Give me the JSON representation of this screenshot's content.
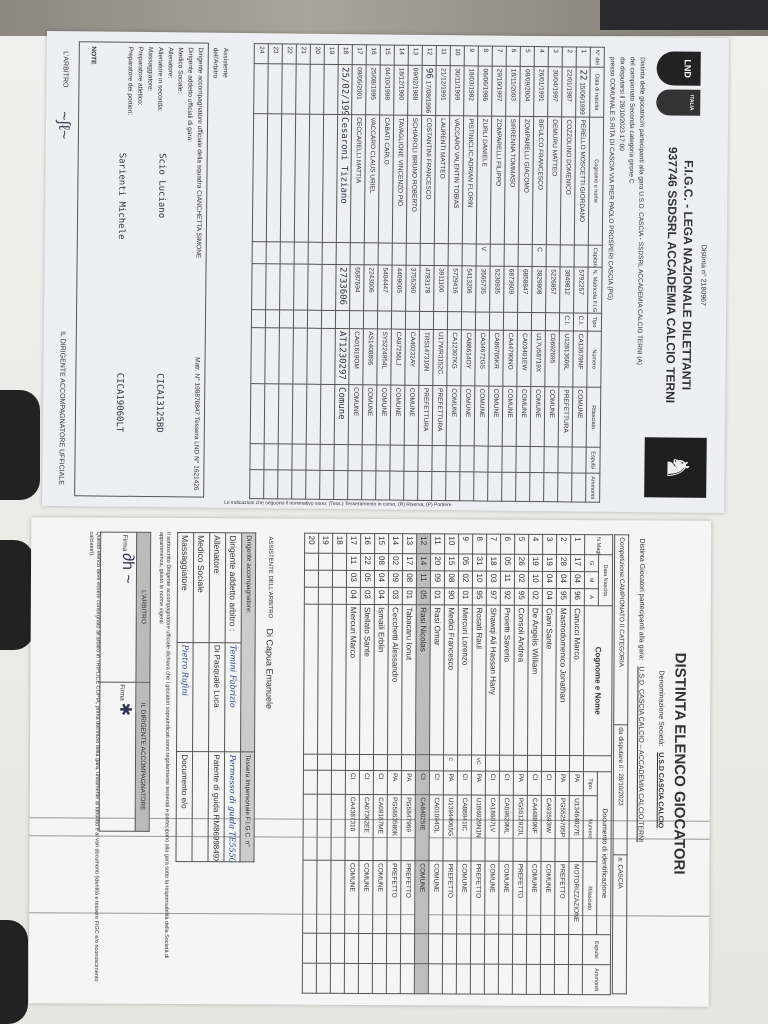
{
  "doc1": {
    "distinta_no": "Distinta n° 2180967",
    "title": "F.I.G.C. - LEGA NAZIONALE DILETTANTI",
    "team": "937746 SSDSRL ACCADEMIA CALCIO TERNI",
    "logo_lnd": "LND",
    "logo_italia": "ITALIA",
    "intro1": "Distinta delle giocatrici/ri partecipanti alla gara   U.S.D. CASCIA - SSDSRL ACCADEMIA CALCIO TERNI (A)",
    "intro2": "del campionato  Seconda categoria girone C",
    "intro3": "da disputarsi il   28/10/2023 17:00",
    "intro4": "presso COMUNALE S.RITA DI CASCIA VIA PIER PAOLO PROSPERI CASCIA (PG)",
    "headers": [
      "N° del Rosa",
      "Data di nascita",
      "Cognome e nome",
      "Capitano V.Cap.",
      "N. Matricola F.I.G.C.",
      "Tipo",
      "Numero",
      "Rilasciato",
      "Espulsi",
      "Ammoniti"
    ],
    "doc_header": "Documento di identificazione",
    "side_note": "Le indicazioni che seguono il nominativo sono: (Tess.) Tesseramento in corso, (R) Riserva, (P) Portiere",
    "rows": [
      {
        "n": "1",
        "mark": "22",
        "date": "15/06/1999",
        "name": "PERELLO MOSCETTI GIORDANO",
        "cap": "",
        "mat": "5792257",
        "tipo": "C.I.",
        "num": "CA13679NF",
        "ril": "COMUNE"
      },
      {
        "n": "2",
        "date": "22/01/1987",
        "name": "COZZOLINO DOMENICO",
        "cap": "",
        "mat": "3849812",
        "tipo": "C.I.",
        "num": "U12813606L",
        "ril": "PREFETTURA"
      },
      {
        "n": "3",
        "date": "30/04/1997",
        "name": "DEMURU MATTEO",
        "cap": "",
        "mat": "5226857",
        "tipo": "",
        "num": "C0692695",
        "ril": "COMUNE"
      },
      {
        "n": "4",
        "date": "26/01/1991",
        "name": "BIFULCO FRANCESCO",
        "cap": "C",
        "mat": "3829808",
        "tipo": "",
        "num": "U17U58719X",
        "ril": "COMUNE"
      },
      {
        "n": "5",
        "date": "08/09/2004",
        "name": "ZOMPARELLI GIACOMO",
        "cap": "",
        "mat": "6858847",
        "tipo": "",
        "num": "CA03401EW",
        "ril": "COMUNE"
      },
      {
        "n": "6",
        "date": "18/11/2003",
        "name": "SIRRENNA TOMMASO",
        "cap": "",
        "mat": "6873609",
        "tipo": "",
        "num": "CA44790NO",
        "ril": "COMUNE"
      },
      {
        "n": "7",
        "date": "29/10/1997",
        "name": "ZOMPARELLI FILIPPO",
        "cap": "",
        "mat": "5230935",
        "tipo": "",
        "num": "CA86705KR",
        "ril": "COMUNE"
      },
      {
        "n": "8",
        "date": "06/06/1986",
        "name": "ZURLI DANIELE",
        "cap": "V",
        "mat": "3565735",
        "tipo": "",
        "num": "CA34672GS",
        "ril": "COMUNE"
      },
      {
        "n": "9",
        "date": "18/03/1982",
        "name": "PISTINICLIC ADRIAN FLORIN",
        "cap": "",
        "mat": "5413206",
        "tipo": "",
        "num": "CA88614OY",
        "ril": "COMUNE"
      },
      {
        "n": "10",
        "date": "30/11/1999",
        "name": "VACCARO VALENTIN TOBIAS",
        "cap": "",
        "mat": "5729416",
        "tipo": "",
        "num": "CA12307KG",
        "ril": "COMUNE"
      },
      {
        "n": "11",
        "date": "21/12/1991",
        "name": "LAURENTI MATTEO",
        "cap": "",
        "mat": "3911100",
        "tipo": "",
        "num": "U17WR3152C",
        "ril": "PREFETTURA"
      },
      {
        "n": "12",
        "mark": "96",
        "date": "17/08/1996",
        "name": "COSTANTINI FRANCESCO",
        "cap": "",
        "mat": "4783178",
        "tipo": "",
        "num": "TRS147310N",
        "ril": "PREFETTURA"
      },
      {
        "n": "13",
        "date": "09/02/1988",
        "name": "SCHIAROLI BRUNO ROBERTO",
        "cap": "",
        "mat": "3755260",
        "tipo": "",
        "num": "CA40232AY",
        "ril": "COMUNE"
      },
      {
        "n": "14",
        "date": "18/12/1990",
        "name": "TAVAGLIONE VINCENZO PIO",
        "cap": "",
        "mat": "4409005",
        "tipo": "",
        "num": "CA97256LJ",
        "ril": "COMUNE"
      },
      {
        "n": "15",
        "date": "04/10/1998",
        "name": "CABATI CARLO",
        "cap": "",
        "mat": "5404447",
        "tipo": "",
        "num": "SY5224954L",
        "ril": "COMUNE"
      },
      {
        "n": "16",
        "date": "25/08/1995",
        "name": "VACCARO CLAUS URIEL",
        "cap": "",
        "mat": "2243006",
        "tipo": "",
        "num": "AS1408895",
        "ril": "COMUNE"
      },
      {
        "n": "17",
        "date": "09/05/2001",
        "name": "CECCARELLI MATTIA",
        "cap": "",
        "mat": "5587594",
        "tipo": "",
        "num": "CA01619OM",
        "ril": "COMUNE"
      },
      {
        "n": "18",
        "date": "25/02/1997",
        "name": "Cesaroni Tiziano",
        "cap": "",
        "mat": "2733606",
        "tipo": "",
        "num": "AT1230297",
        "ril": "Comune"
      },
      {
        "n": "19"
      },
      {
        "n": "20"
      },
      {
        "n": "21"
      },
      {
        "n": "22"
      },
      {
        "n": "23"
      },
      {
        "n": "24"
      }
    ],
    "assistente_label": "Assistente dell'Arbitro",
    "staff_dirigente": "Dirigente accompagnatore ufficiale della squadra CIANCHETTA SIMONE",
    "staff_matr": "Matr. N° 198870847 Tessera LND N° 1621426",
    "staff_lines": [
      "Dirigente addetto ufficiali di gara:",
      "Medico Sociale:",
      "Allenatore:",
      "Allenatore in seconda:",
      "Massaggiatore:",
      "Preparatore atletico:",
      "Preparatore dei portieri:"
    ],
    "allenatore_hw": "Scio Luciano",
    "allenatore_doc": "CICA13125BD",
    "portieri_hw": "Sarienti Michele",
    "portieri_doc": "CICA19060LT",
    "note_label": "NOTE",
    "arbitro_label": "L'ARBITRO",
    "dirigente_label": "IL DIRIGENTE ACCOMPAGNATORE UFFICIALE"
  },
  "doc2": {
    "title": "DISTINTA ELENCO GIOCATORI",
    "societa_label": "Denominazione Società:",
    "societa": "U.S.D CASCIA CALCIO",
    "gara_label": "Distinta Giocatori partecipanti alla gara:",
    "gara": "U.S.D. CASCIA CALCIO – ACCADEMIA CALCIO TERNI",
    "competizione": "Competizione:CAMPIONATO II CATEGORIA",
    "data_gara": "da disputare il : 28/10/2023",
    "luogo": "a: CASCIA",
    "h_maglia": "N.Maglia",
    "h_nascita": "Data Nascita",
    "h_g": "G",
    "h_m": "M",
    "h_a": "A",
    "h_nome": "Cognome e Nome",
    "h_doc": "Documento di identificazione",
    "h_tipo": "Tipo",
    "h_num": "Numero",
    "h_ril": "Rilasciato",
    "h_esp": "Espulsi",
    "h_amm": "Ammoniti",
    "rows": [
      {
        "n": "1",
        "g": "17",
        "m": "04",
        "a": "96",
        "name": "Carucci Marco",
        "cap": "",
        "tipo": "PA",
        "num": "U13464827E",
        "ril": "MOTORIZZAZIONE"
      },
      {
        "n": "2",
        "g": "28",
        "m": "04",
        "a": "95",
        "name": "Mastrodomenico Jonathan",
        "cap": "",
        "tipo": "PA",
        "num": "PG5525705P",
        "ril": "PREFETTO"
      },
      {
        "n": "3",
        "g": "19",
        "m": "04",
        "a": "04",
        "name": "Ciani Sante",
        "cap": "",
        "tipo": "CI",
        "num": "CA93593IW",
        "ril": "COMUNE"
      },
      {
        "n": "4",
        "g": "19",
        "m": "10",
        "a": "02",
        "name": "De Angelis William",
        "cap": "",
        "tipo": "CI",
        "num": "CA44889NF",
        "ril": "COMUNE"
      },
      {
        "n": "5",
        "g": "26",
        "m": "02",
        "a": "95",
        "name": "Consoli Andrea",
        "cap": "",
        "tipo": "PA",
        "num": "PG5512923L",
        "ril": "PREFETTO"
      },
      {
        "n": "6",
        "g": "05",
        "m": "11",
        "a": "92",
        "name": "Proietti Saverio",
        "cap": "",
        "tipo": "CI",
        "num": "CA09629ML",
        "ril": "COMUNE"
      },
      {
        "n": "7",
        "g": "18",
        "m": "03",
        "a": "97",
        "name": "Shawqi Ali Hassan Hany",
        "cap": "",
        "tipo": "CI",
        "num": "CA18607LV",
        "ril": "COMUNE"
      },
      {
        "n": "8",
        "g": "31",
        "m": "10",
        "a": "95",
        "name": "Rosati Raul",
        "cap": "VC",
        "tipo": "PA",
        "num": "U1B6926N1N",
        "ril": "PREFETTO"
      },
      {
        "n": "9",
        "g": "05",
        "m": "02",
        "a": "01",
        "name": "Mercuri Lorenzo",
        "cap": "",
        "tipo": "CI",
        "num": "CA88941IC",
        "ril": "COMUNE"
      },
      {
        "n": "10",
        "g": "15",
        "m": "08",
        "a": "90",
        "name": "Medici Francesco",
        "cap": "C",
        "tipo": "PA",
        "num": "U13944065G",
        "ril": "PREFETTO"
      },
      {
        "n": "11",
        "g": "20",
        "m": "09",
        "a": "01",
        "name": "Rasi Omar",
        "cap": "",
        "tipo": "CI",
        "num": "CA01094OL",
        "ril": "COMUNE"
      },
      {
        "n": "12",
        "g": "14",
        "m": "11",
        "a": "05",
        "name": "Rasi Nicolas",
        "cap": "",
        "tipo": "CI",
        "num": "CA84025IE",
        "ril": "COMUNE",
        "hl": true
      },
      {
        "n": "13",
        "g": "17",
        "m": "08",
        "a": "01",
        "name": "Tabacaru Ionut",
        "cap": "",
        "tipo": "PA",
        "num": "PG5847969",
        "ril": "PREFETTO"
      },
      {
        "n": "14",
        "g": "02",
        "m": "09",
        "a": "03",
        "name": "Cecchetti Alessandro",
        "cap": "",
        "tipo": "PA",
        "num": "PG5663580K",
        "ril": "PREFETTO"
      },
      {
        "n": "15",
        "g": "08",
        "m": "04",
        "a": "04",
        "name": "Ismaili Erblin",
        "cap": "",
        "tipo": "CI",
        "num": "CA09187ME",
        "ril": "COMUNE"
      },
      {
        "n": "16",
        "g": "22",
        "m": "05",
        "a": "03",
        "name": "Stellato Sante",
        "cap": "",
        "tipo": "CI",
        "num": "CA07362EE",
        "ril": "COMUNE"
      },
      {
        "n": "17",
        "g": "11",
        "m": "03",
        "a": "04",
        "name": "Mercuri Marco",
        "cap": "",
        "tipo": "CI",
        "num": "CA4387310",
        "ril": "COMUNE"
      },
      {
        "n": "18"
      },
      {
        "n": "19"
      },
      {
        "n": "20"
      }
    ],
    "assistente_label": "ASSISTENTE DELL'ARBITRO",
    "assistente": "Di Capua Emanuele",
    "acc_label": "Dirigente accompagnatore:",
    "tessera_label": "Tessera Impersonale F.I.G.C. n°",
    "staff": [
      {
        "role": "Dirigente addetto arbitro :",
        "name": "Temini Fabrizio",
        "doc_type": "Permesso di guida",
        "doc": "TE5550F3X"
      },
      {
        "role": "Allenatore",
        "name": "Di Pasquale Luca",
        "doc_type": "Patente di guida",
        "doc": "RM8699849X"
      },
      {
        "role": "Medico Sociale",
        "name": "",
        "doc_type": "",
        "doc": ""
      },
      {
        "role": "Massaggiatore",
        "name": "Pietro Rufini",
        "doc_type": "Documento e/o",
        "doc": ""
      }
    ],
    "declaration": "Il sottoscritto Dirigente accompagnatore ufficiale dichiara che i giocatori sopraindicati sono regolarmente tesserati e partecipano alla gara sotto la responsabilità della Società di appartenenza, giusto le norme vigenti",
    "arbitro_label": "L'ARBITRO",
    "dirigente_label": "IL DIRIGENTE ACCOMPAGNATORE",
    "firma": "Firma",
    "footer": "Questo elenco deve essere consegnato all'arbitro in TRIPLICE COPIA, prima dell'inizio della gara, unitamente al tabulato e ai vari documenti (identità e tessere FIGC e/o riconoscimento calciatori)."
  }
}
